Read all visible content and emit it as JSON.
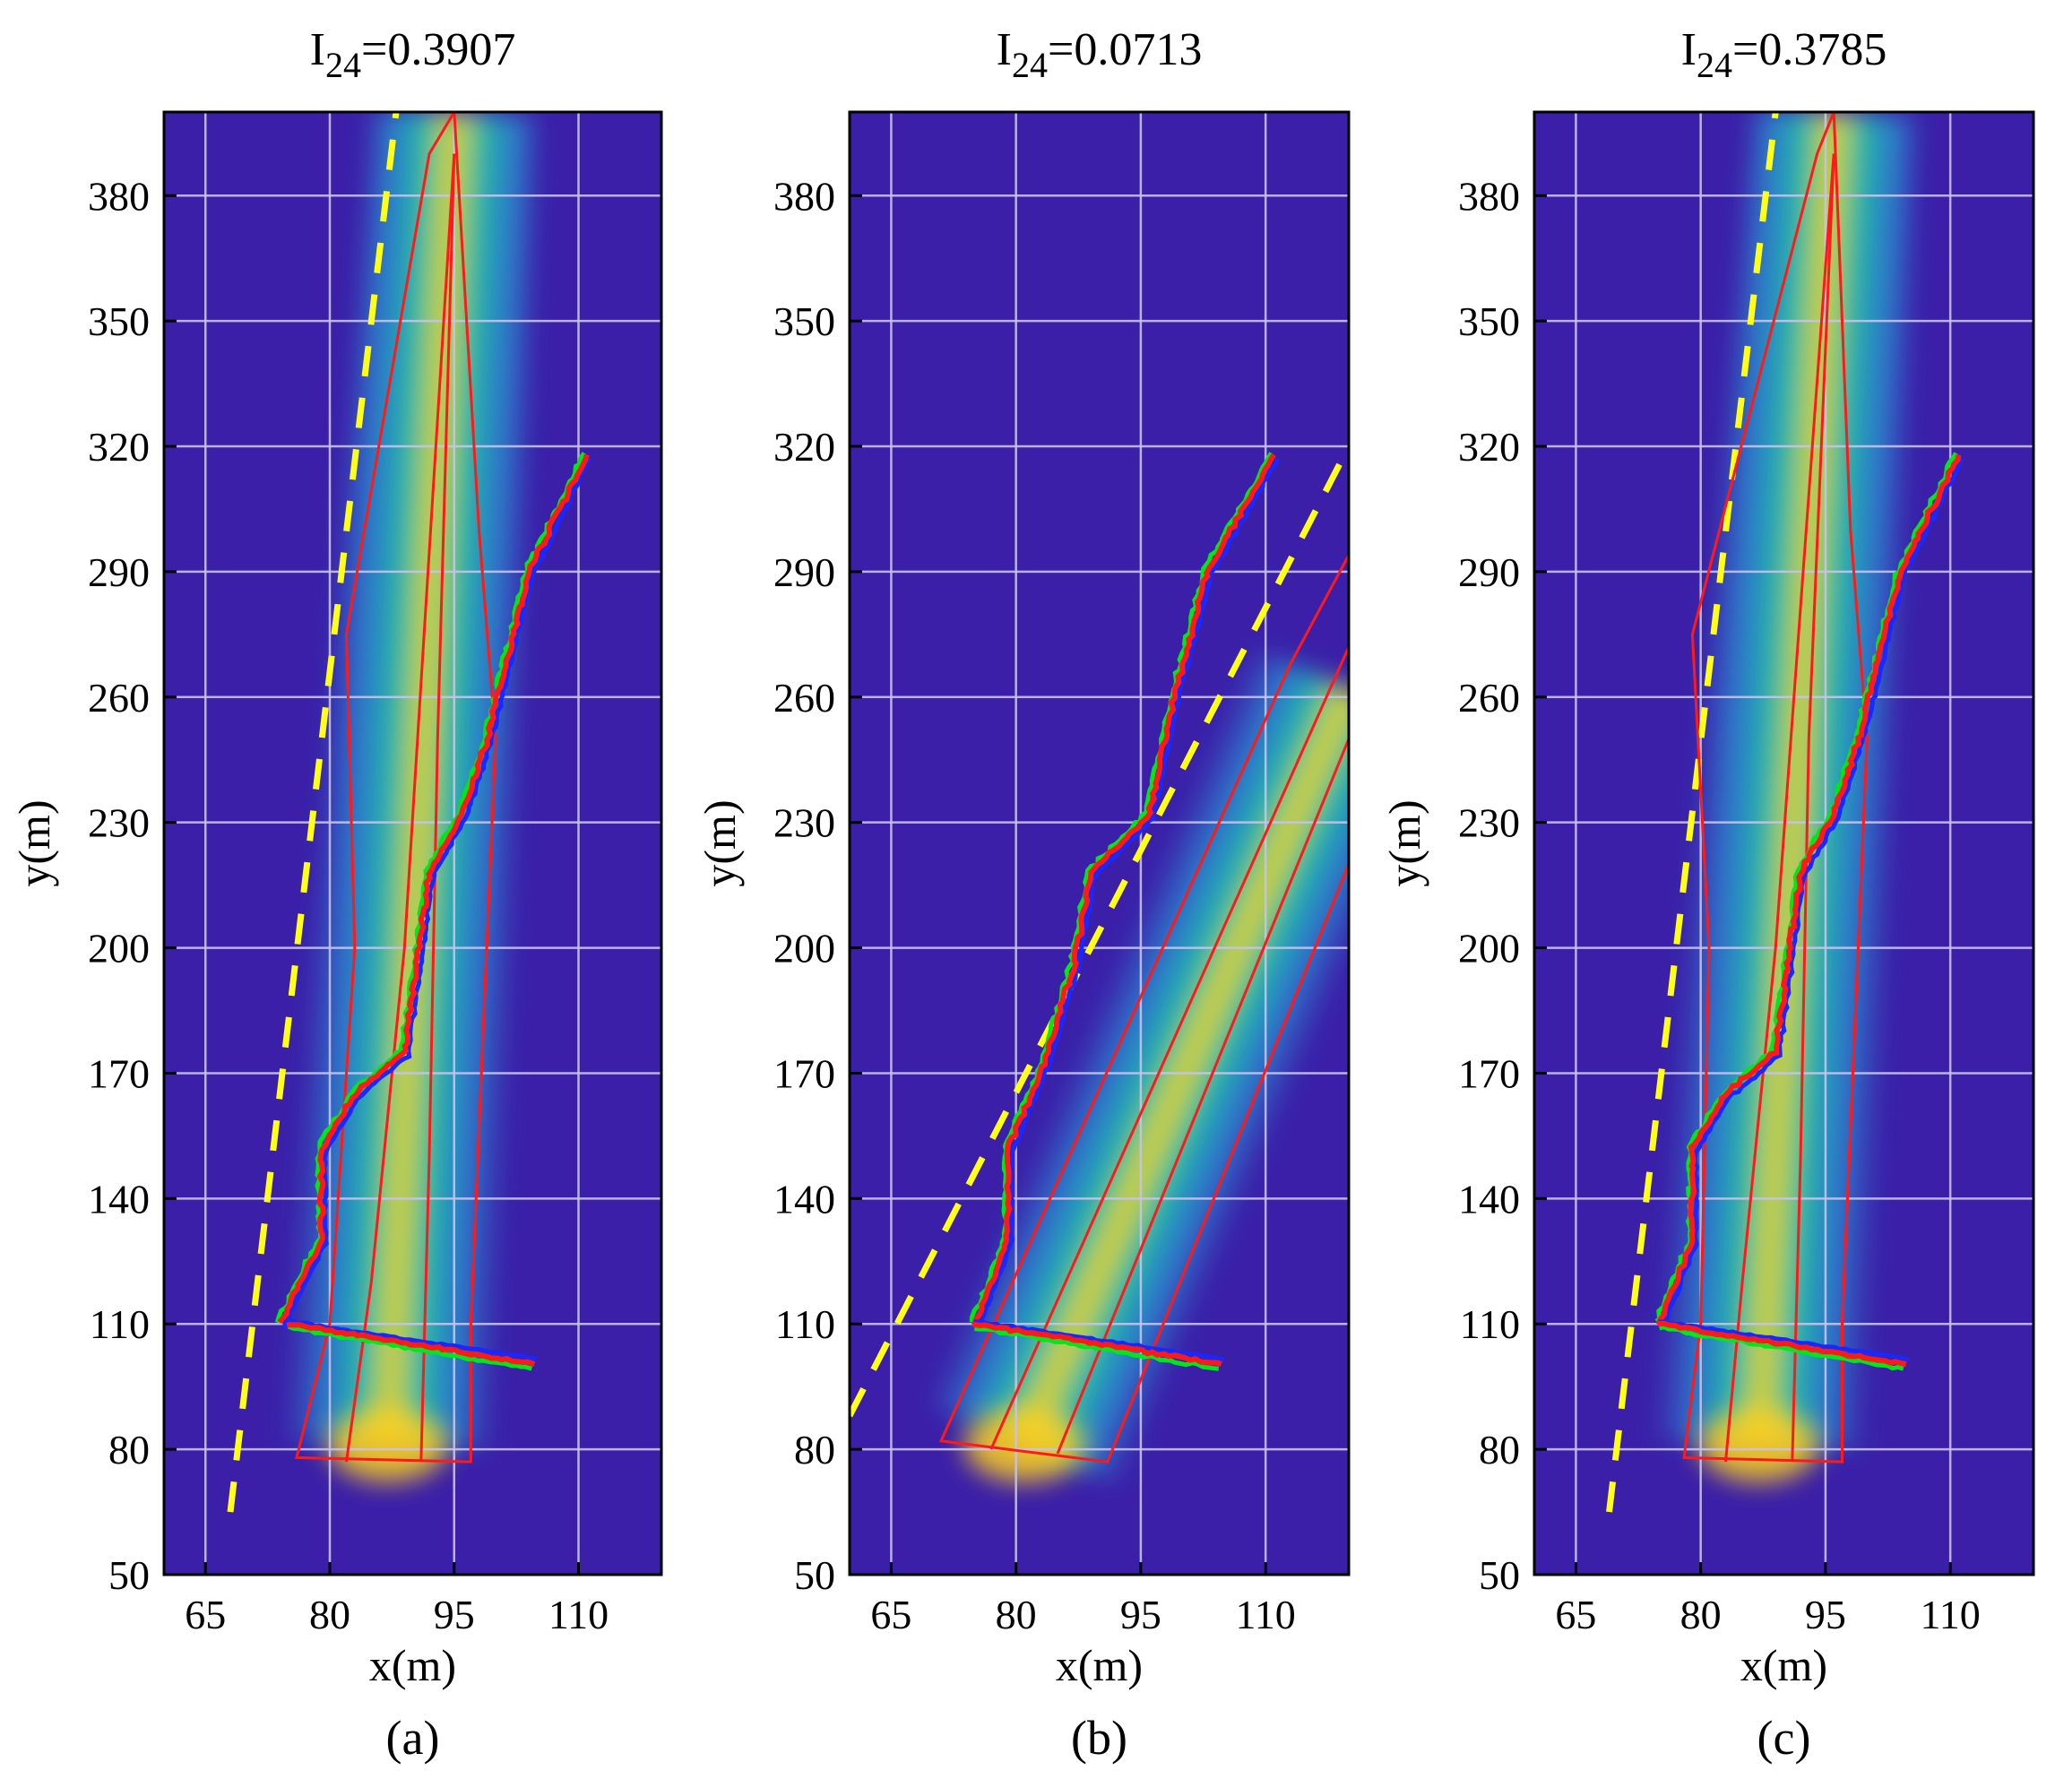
{
  "figure": {
    "background": "#ffffff",
    "plot_background": "#3b1fa8",
    "grid_color": "#c8c3ea",
    "colors": {
      "plume_low": "#2a8fd6",
      "plume_mid": "#1fc8a0",
      "plume_high": "#ffd21a",
      "boundary_red": "#ff1a1a",
      "boundary_green": "#00e61a",
      "boundary_blue": "#1a28ff",
      "dashed_yellow": "#ffff1a"
    }
  },
  "chart_data": [
    {
      "type": "heatmap",
      "panel_label": "(a)",
      "title_base": "I",
      "title_sub": "24",
      "title_value": "=0.3907",
      "xlabel": "x(m)",
      "ylabel": "y(m)",
      "xlim": [
        60,
        120
      ],
      "ylim": [
        50,
        400
      ],
      "xticks": [
        65,
        80,
        95,
        110
      ],
      "yticks": [
        50,
        80,
        110,
        140,
        170,
        200,
        230,
        260,
        290,
        320,
        350,
        380
      ],
      "grid": true,
      "plume": {
        "source": [
          87,
          81
        ],
        "end": [
          95,
          400
        ],
        "width_start": 8,
        "width_end": 6
      },
      "red_polygon": [
        [
          76,
          78
        ],
        [
          80,
          110
        ],
        [
          83,
          200
        ],
        [
          82,
          275
        ],
        [
          92,
          390
        ],
        [
          95,
          400
        ],
        [
          98,
          300
        ],
        [
          100,
          250
        ],
        [
          97,
          110
        ],
        [
          97,
          77
        ]
      ],
      "inner_red_polylines": [
        [
          [
            82,
            77
          ],
          [
            85,
            120
          ],
          [
            89,
            200
          ],
          [
            95,
            390
          ]
        ],
        [
          [
            91,
            77
          ],
          [
            92,
            150
          ],
          [
            93,
            250
          ],
          [
            95,
            390
          ]
        ]
      ],
      "contour_line": [
        [
          74,
          110
        ],
        [
          79,
          130
        ],
        [
          79,
          152
        ],
        [
          83,
          165
        ],
        [
          89,
          175
        ],
        [
          92,
          218
        ],
        [
          96,
          232
        ],
        [
          99,
          250
        ],
        [
          104,
          290
        ],
        [
          111,
          318
        ]
      ],
      "crossing_line": [
        [
          75,
          110
        ],
        [
          105,
          101
        ]
      ],
      "dashed_line": [
        [
          68,
          65
        ],
        [
          88,
          400
        ]
      ]
    },
    {
      "type": "heatmap",
      "panel_label": "(b)",
      "title_base": "I",
      "title_sub": "24",
      "title_value": "=0.0713",
      "xlabel": "x(m)",
      "ylabel": "y(m)",
      "xlim": [
        60,
        120
      ],
      "ylim": [
        50,
        400
      ],
      "xticks": [
        65,
        80,
        95,
        110
      ],
      "yticks": [
        50,
        80,
        110,
        140,
        170,
        200,
        230,
        260,
        290,
        320,
        350,
        380
      ],
      "grid": true,
      "plume": {
        "source": [
          81,
          81
        ],
        "end": [
          120,
          262
        ],
        "width_start": 8,
        "width_end": 8
      },
      "red_polygon": [
        [
          71,
          82
        ],
        [
          91,
          77
        ],
        [
          120,
          220
        ],
        [
          120,
          294
        ],
        [
          113,
          268
        ]
      ],
      "inner_red_polylines": [
        [
          [
            77,
            80
          ],
          [
            120,
            272
          ]
        ],
        [
          [
            85,
            79
          ],
          [
            120,
            250
          ]
        ]
      ],
      "contour_line": [
        [
          75,
          110
        ],
        [
          79,
          130
        ],
        [
          79,
          152
        ],
        [
          83,
          170
        ],
        [
          87,
          196
        ],
        [
          89,
          218
        ],
        [
          96,
          232
        ],
        [
          99,
          260
        ],
        [
          103,
          290
        ],
        [
          111,
          318
        ]
      ],
      "crossing_line": [
        [
          75,
          110
        ],
        [
          105,
          101
        ]
      ],
      "dashed_line": [
        [
          60,
          88
        ],
        [
          120,
          320
        ]
      ]
    },
    {
      "type": "heatmap",
      "panel_label": "(c)",
      "title_base": "I",
      "title_sub": "24",
      "title_value": "=0.3785",
      "xlabel": "x(m)",
      "ylabel": "y(m)",
      "xlim": [
        60,
        120
      ],
      "ylim": [
        50,
        400
      ],
      "xticks": [
        65,
        80,
        95,
        110
      ],
      "yticks": [
        50,
        80,
        110,
        140,
        170,
        200,
        230,
        260,
        290,
        320,
        350,
        380
      ],
      "grid": true,
      "plume": {
        "source": [
          87,
          81
        ],
        "end": [
          96,
          400
        ],
        "width_start": 8,
        "width_end": 6
      },
      "red_polygon": [
        [
          78,
          78
        ],
        [
          80,
          110
        ],
        [
          81,
          200
        ],
        [
          79,
          275
        ],
        [
          94,
          390
        ],
        [
          96,
          400
        ],
        [
          98,
          300
        ],
        [
          100,
          250
        ],
        [
          97,
          110
        ],
        [
          97,
          77
        ]
      ],
      "inner_red_polylines": [
        [
          [
            83,
            77
          ],
          [
            85,
            120
          ],
          [
            89,
            200
          ],
          [
            96,
            390
          ]
        ],
        [
          [
            91,
            77
          ],
          [
            92,
            150
          ],
          [
            93,
            250
          ],
          [
            96,
            390
          ]
        ]
      ],
      "contour_line": [
        [
          75,
          110
        ],
        [
          79,
          130
        ],
        [
          79,
          152
        ],
        [
          83,
          165
        ],
        [
          89,
          175
        ],
        [
          92,
          218
        ],
        [
          96,
          232
        ],
        [
          99,
          250
        ],
        [
          104,
          290
        ],
        [
          111,
          318
        ]
      ],
      "crossing_line": [
        [
          75,
          110
        ],
        [
          105,
          101
        ]
      ],
      "dashed_line": [
        [
          69,
          65
        ],
        [
          89,
          400
        ]
      ]
    }
  ]
}
